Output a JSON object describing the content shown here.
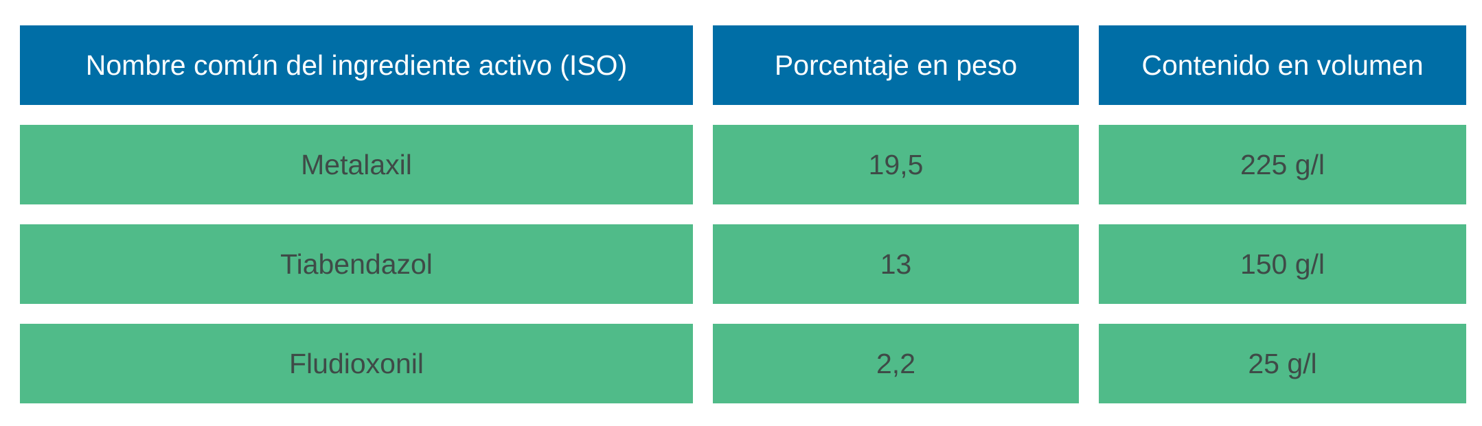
{
  "table": {
    "headers": [
      "Nombre común del ingrediente activo (ISO)",
      "Porcentaje en peso",
      "Contenido en volumen"
    ],
    "rows": [
      [
        "Metalaxil",
        "19,5",
        "225 g/l"
      ],
      [
        "Tiabendazol",
        "13",
        "150 g/l"
      ],
      [
        "Fludioxonil",
        "2,2",
        "25 g/l"
      ]
    ]
  },
  "colors": {
    "header_background": "#006ea6",
    "header_text": "#ffffff",
    "row_background": "#50bb89",
    "row_text": "#3f4a47"
  }
}
